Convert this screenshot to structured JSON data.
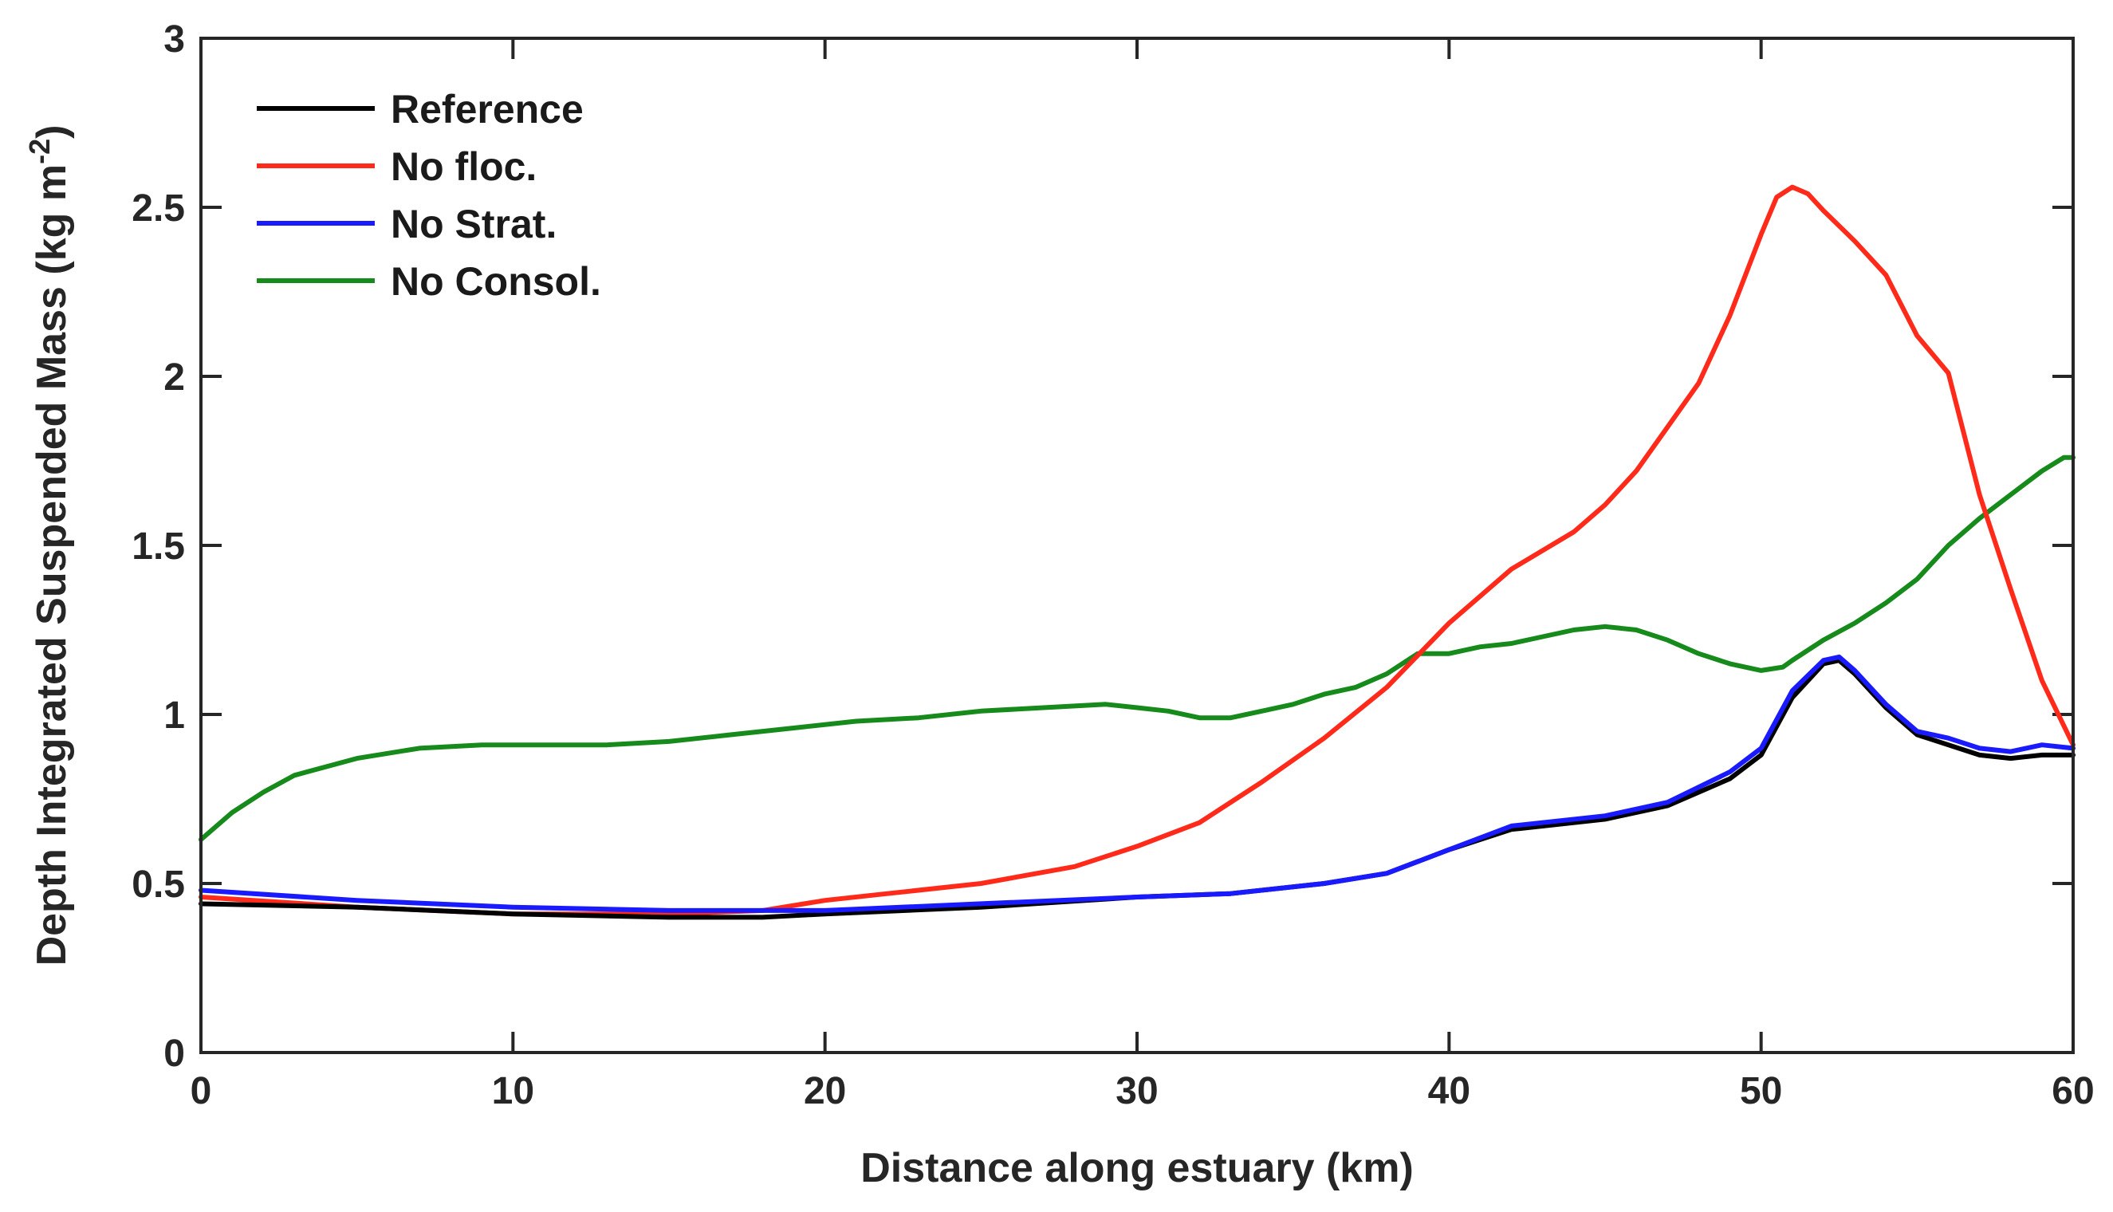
{
  "chart_data": {
    "type": "line",
    "title": "",
    "xlabel": "Distance along estuary (km)",
    "ylabel_main": "Depth Integrated Suspended Mass (kg m",
    "ylabel_sup": "-2",
    "ylabel_end": ")",
    "xlim": [
      0,
      60
    ],
    "ylim": [
      0,
      3
    ],
    "xticks": [
      0,
      10,
      20,
      30,
      40,
      50,
      60
    ],
    "xtick_labels": [
      "0",
      "10",
      "20",
      "30",
      "40",
      "50",
      "60"
    ],
    "yticks": [
      0,
      0.5,
      1,
      1.5,
      2,
      2.5,
      3
    ],
    "ytick_labels": [
      "0",
      "0.5",
      "1",
      "1.5",
      "2",
      "2.5",
      "3"
    ],
    "legend_position": "top-left",
    "series": [
      {
        "name": "Reference",
        "color": "#000000",
        "points": [
          [
            0,
            0.44
          ],
          [
            5,
            0.43
          ],
          [
            10,
            0.41
          ],
          [
            15,
            0.4
          ],
          [
            18,
            0.4
          ],
          [
            20,
            0.41
          ],
          [
            25,
            0.43
          ],
          [
            30,
            0.46
          ],
          [
            33,
            0.47
          ],
          [
            36,
            0.5
          ],
          [
            38,
            0.53
          ],
          [
            40,
            0.6
          ],
          [
            42,
            0.66
          ],
          [
            45,
            0.69
          ],
          [
            47,
            0.73
          ],
          [
            49,
            0.81
          ],
          [
            50,
            0.88
          ],
          [
            51,
            1.05
          ],
          [
            52,
            1.15
          ],
          [
            52.5,
            1.16
          ],
          [
            53,
            1.12
          ],
          [
            54,
            1.02
          ],
          [
            55,
            0.94
          ],
          [
            56,
            0.91
          ],
          [
            57,
            0.88
          ],
          [
            58,
            0.87
          ],
          [
            59,
            0.88
          ],
          [
            60,
            0.88
          ]
        ]
      },
      {
        "name": "No floc.",
        "color": "#ff2a1a",
        "points": [
          [
            0,
            0.46
          ],
          [
            5,
            0.43
          ],
          [
            10,
            0.41
          ],
          [
            15,
            0.41
          ],
          [
            18,
            0.42
          ],
          [
            20,
            0.45
          ],
          [
            22,
            0.47
          ],
          [
            25,
            0.5
          ],
          [
            28,
            0.55
          ],
          [
            30,
            0.61
          ],
          [
            32,
            0.68
          ],
          [
            34,
            0.8
          ],
          [
            36,
            0.93
          ],
          [
            38,
            1.08
          ],
          [
            40,
            1.27
          ],
          [
            42,
            1.43
          ],
          [
            44,
            1.54
          ],
          [
            45,
            1.62
          ],
          [
            46,
            1.72
          ],
          [
            47,
            1.85
          ],
          [
            48,
            1.98
          ],
          [
            49,
            2.18
          ],
          [
            50,
            2.42
          ],
          [
            50.5,
            2.53
          ],
          [
            51,
            2.56
          ],
          [
            51.5,
            2.54
          ],
          [
            52,
            2.49
          ],
          [
            53,
            2.4
          ],
          [
            54,
            2.3
          ],
          [
            55,
            2.12
          ],
          [
            56,
            2.01
          ],
          [
            57,
            1.65
          ],
          [
            58,
            1.37
          ],
          [
            59,
            1.1
          ],
          [
            60,
            0.91
          ]
        ]
      },
      {
        "name": "No Strat.",
        "color": "#1a1aff",
        "points": [
          [
            0,
            0.48
          ],
          [
            5,
            0.45
          ],
          [
            10,
            0.43
          ],
          [
            15,
            0.42
          ],
          [
            18,
            0.42
          ],
          [
            20,
            0.42
          ],
          [
            25,
            0.44
          ],
          [
            30,
            0.46
          ],
          [
            33,
            0.47
          ],
          [
            36,
            0.5
          ],
          [
            38,
            0.53
          ],
          [
            40,
            0.6
          ],
          [
            42,
            0.67
          ],
          [
            45,
            0.7
          ],
          [
            47,
            0.74
          ],
          [
            49,
            0.83
          ],
          [
            50,
            0.9
          ],
          [
            51,
            1.07
          ],
          [
            52,
            1.16
          ],
          [
            52.5,
            1.17
          ],
          [
            53,
            1.13
          ],
          [
            54,
            1.03
          ],
          [
            55,
            0.95
          ],
          [
            56,
            0.93
          ],
          [
            57,
            0.9
          ],
          [
            58,
            0.89
          ],
          [
            59,
            0.91
          ],
          [
            60,
            0.9
          ]
        ]
      },
      {
        "name": "No Consol.",
        "color": "#168a1a",
        "points": [
          [
            0,
            0.63
          ],
          [
            1,
            0.71
          ],
          [
            2,
            0.77
          ],
          [
            3,
            0.82
          ],
          [
            5,
            0.87
          ],
          [
            7,
            0.9
          ],
          [
            9,
            0.91
          ],
          [
            11,
            0.91
          ],
          [
            13,
            0.91
          ],
          [
            15,
            0.92
          ],
          [
            17,
            0.94
          ],
          [
            19,
            0.96
          ],
          [
            21,
            0.98
          ],
          [
            23,
            0.99
          ],
          [
            25,
            1.01
          ],
          [
            27,
            1.02
          ],
          [
            29,
            1.03
          ],
          [
            30,
            1.02
          ],
          [
            31,
            1.01
          ],
          [
            32,
            0.99
          ],
          [
            33,
            0.99
          ],
          [
            34,
            1.01
          ],
          [
            35,
            1.03
          ],
          [
            36,
            1.06
          ],
          [
            37,
            1.08
          ],
          [
            38,
            1.12
          ],
          [
            39,
            1.18
          ],
          [
            40,
            1.18
          ],
          [
            41,
            1.2
          ],
          [
            42,
            1.21
          ],
          [
            43,
            1.23
          ],
          [
            44,
            1.25
          ],
          [
            45,
            1.26
          ],
          [
            46,
            1.25
          ],
          [
            47,
            1.22
          ],
          [
            48,
            1.18
          ],
          [
            49,
            1.15
          ],
          [
            50,
            1.13
          ],
          [
            50.7,
            1.14
          ],
          [
            51,
            1.16
          ],
          [
            52,
            1.22
          ],
          [
            53,
            1.27
          ],
          [
            54,
            1.33
          ],
          [
            55,
            1.4
          ],
          [
            56,
            1.5
          ],
          [
            57,
            1.58
          ],
          [
            58,
            1.65
          ],
          [
            59,
            1.72
          ],
          [
            59.7,
            1.76
          ],
          [
            60,
            1.76
          ]
        ]
      }
    ]
  }
}
